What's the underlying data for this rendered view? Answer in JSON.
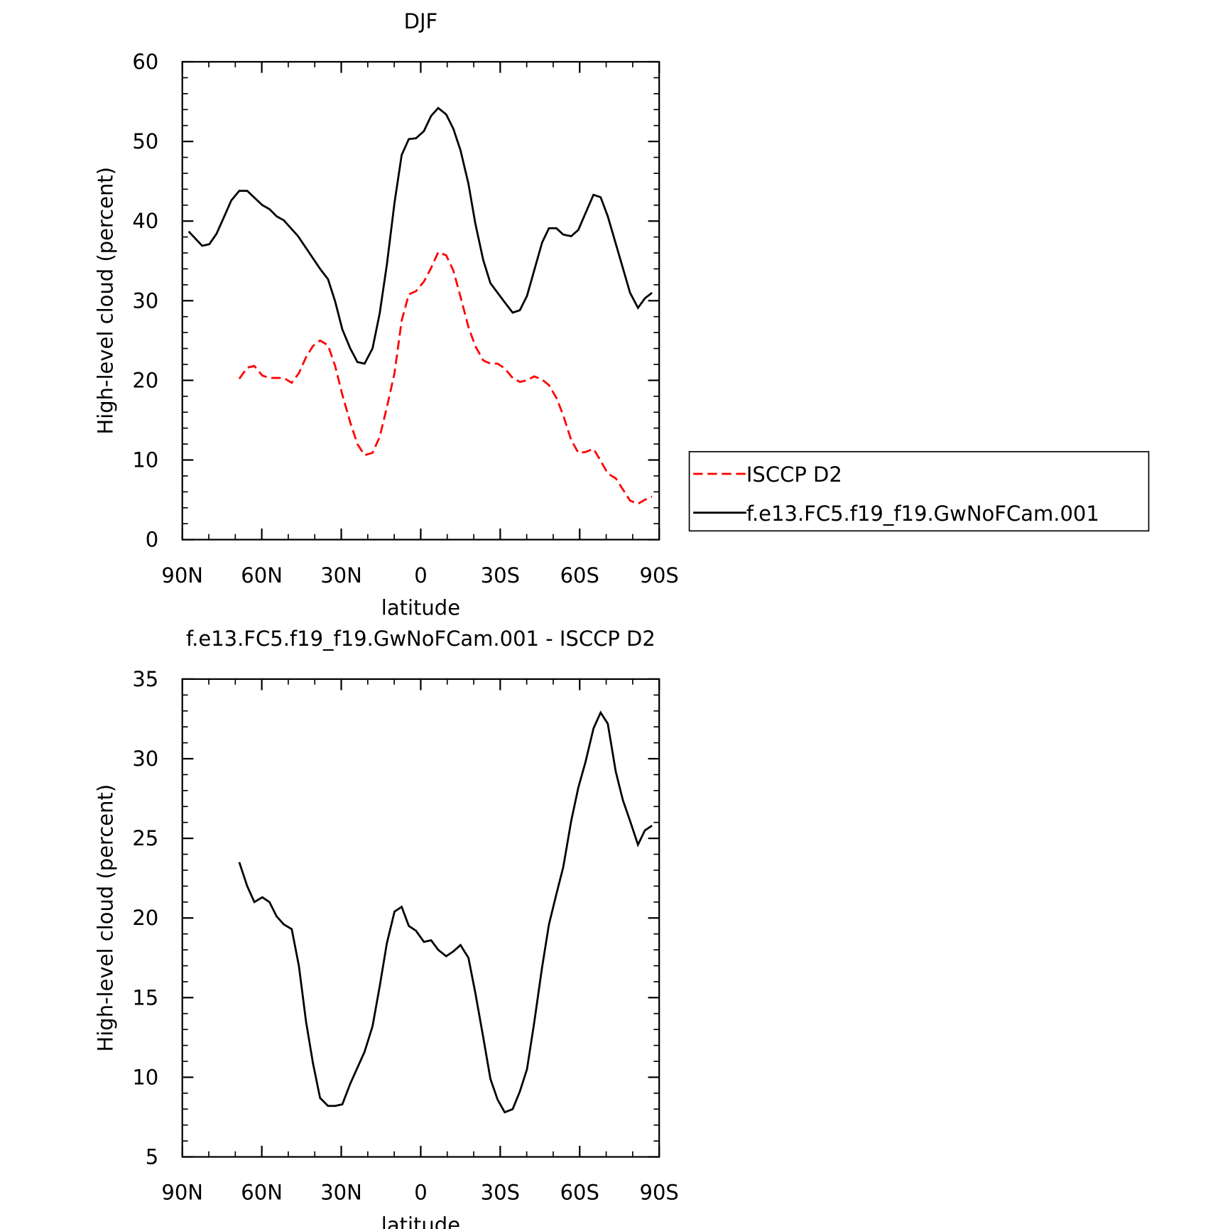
{
  "chart_data": [
    {
      "type": "line",
      "title": "DJF",
      "xlabel": "latitude",
      "ylabel": "High-level cloud (percent)",
      "xlim": [
        90,
        -90
      ],
      "xticks": [
        {
          "value": 90,
          "label": "90N"
        },
        {
          "value": 60,
          "label": "60N"
        },
        {
          "value": 30,
          "label": "30N"
        },
        0,
        {
          "value": -30,
          "label": "30S"
        },
        {
          "value": -60,
          "label": "60S"
        },
        {
          "value": -90,
          "label": "90S"
        }
      ],
      "ylim": [
        0,
        60
      ],
      "yticks": [
        0,
        10,
        20,
        30,
        40,
        50,
        60
      ],
      "legend": "right",
      "series": [
        {
          "name": "ISCCP D2",
          "color": "#ff0000",
          "dashed": true,
          "x": [
            68.5,
            65.5,
            62.8,
            59.8,
            57.1,
            51.7,
            48.7,
            46.0,
            43.3,
            40.7,
            38.0,
            35.0,
            32.3,
            29.6,
            26.6,
            23.9,
            21.2,
            18.2,
            15.5,
            12.8,
            9.9,
            7.2,
            4.5,
            1.8,
            -1.2,
            -3.9,
            -6.6,
            -9.6,
            -12.3,
            -15.0,
            -18.0,
            -20.6,
            -23.6,
            -26.3,
            -29.0,
            -31.7,
            -34.7,
            -37.4,
            -40.1,
            -42.8,
            -45.8,
            -48.4,
            -51.2,
            -53.8,
            -56.8,
            -59.5,
            -62.2,
            -65.2,
            -67.9,
            -70.6,
            -73.6,
            -76.3,
            -79.0,
            -82.0,
            -84.6,
            -87.3
          ],
          "values": [
            20.2,
            21.6,
            21.8,
            20.6,
            20.3,
            20.3,
            19.7,
            20.9,
            22.9,
            24.3,
            25.0,
            24.4,
            21.8,
            18.2,
            14.7,
            12.0,
            10.6,
            10.9,
            12.9,
            16.6,
            20.9,
            27.5,
            30.8,
            31.2,
            32.4,
            34.1,
            36.1,
            35.7,
            33.8,
            30.5,
            26.7,
            24.3,
            22.5,
            22.1,
            22.1,
            21.5,
            20.3,
            19.8,
            20.0,
            20.5,
            20.1,
            19.4,
            17.8,
            15.6,
            12.5,
            10.9,
            11.0,
            11.4,
            9.9,
            8.3,
            7.7,
            6.3,
            4.9,
            4.5,
            5.0,
            5.4
          ]
        },
        {
          "name": "f.e13.FC5.f19_f19.GwNoFCam.001",
          "color": "#000000",
          "dashed": false,
          "x": [
            87.6,
            82.5,
            79.8,
            77.1,
            74.4,
            71.5,
            68.5,
            65.5,
            59.8,
            57.1,
            54.4,
            51.7,
            46.3,
            38.0,
            35.0,
            32.3,
            29.6,
            26.6,
            23.9,
            21.2,
            18.2,
            15.5,
            12.8,
            9.9,
            7.2,
            4.5,
            1.8,
            -1.2,
            -3.9,
            -6.6,
            -9.6,
            -12.3,
            -15.0,
            -18.0,
            -20.6,
            -23.6,
            -26.3,
            -31.7,
            -34.7,
            -37.4,
            -40.1,
            -45.8,
            -48.4,
            -51.2,
            -53.8,
            -56.8,
            -59.5,
            -62.2,
            -65.2,
            -67.9,
            -70.6,
            -76.3,
            -79.0,
            -82.0,
            -84.6,
            -87.3
          ],
          "values": [
            38.7,
            36.9,
            37.1,
            38.4,
            40.4,
            42.6,
            43.8,
            43.8,
            42.0,
            41.5,
            40.6,
            40.1,
            38.1,
            34.0,
            32.7,
            29.9,
            26.4,
            24.0,
            22.3,
            22.1,
            24.0,
            28.4,
            34.5,
            42.3,
            48.3,
            50.3,
            50.4,
            51.3,
            53.2,
            54.2,
            53.4,
            51.6,
            48.9,
            44.7,
            39.7,
            35.1,
            32.2,
            29.8,
            28.5,
            28.8,
            30.6,
            37.3,
            39.1,
            39.1,
            38.3,
            38.1,
            38.9,
            41.0,
            43.3,
            43.0,
            40.6,
            34.1,
            31.0,
            29.1,
            30.3,
            31.0
          ]
        }
      ]
    },
    {
      "type": "line",
      "title": "f.e13.FC5.f19_f19.GwNoFCam.001 - ISCCP D2",
      "xlabel": "latitude",
      "ylabel": "High-level cloud (percent)",
      "xlim": [
        90,
        -90
      ],
      "xticks": [
        {
          "value": 90,
          "label": "90N"
        },
        {
          "value": 60,
          "label": "60N"
        },
        {
          "value": 30,
          "label": "30N"
        },
        0,
        {
          "value": -30,
          "label": "30S"
        },
        {
          "value": -60,
          "label": "60S"
        },
        {
          "value": -90,
          "label": "90S"
        }
      ],
      "ylim": [
        5,
        35
      ],
      "yticks": [
        5,
        10,
        15,
        20,
        25,
        30,
        35
      ],
      "series": [
        {
          "color": "#000000",
          "dashed": false,
          "x": [
            68.5,
            65.5,
            62.8,
            59.8,
            57.1,
            54.4,
            51.7,
            48.7,
            46.0,
            43.3,
            40.7,
            38.0,
            35.0,
            32.3,
            29.6,
            26.6,
            23.9,
            21.2,
            18.2,
            15.5,
            12.8,
            9.9,
            7.2,
            4.5,
            1.8,
            -1.2,
            -3.9,
            -6.6,
            -9.6,
            -12.3,
            -15.0,
            -18.0,
            -20.6,
            -23.6,
            -26.3,
            -29.0,
            -31.7,
            -34.7,
            -37.4,
            -40.1,
            -42.8,
            -45.8,
            -48.4,
            -51.2,
            -53.8,
            -56.8,
            -59.5,
            -62.2,
            -65.2,
            -67.9,
            -70.6,
            -73.6,
            -76.3,
            -79.0,
            -82.0,
            -84.6,
            -87.3
          ],
          "values": [
            23.5,
            22.0,
            21.0,
            21.3,
            21.0,
            20.1,
            19.6,
            19.3,
            17.0,
            13.5,
            10.9,
            8.7,
            8.2,
            8.2,
            8.3,
            9.6,
            10.6,
            11.6,
            13.2,
            15.7,
            18.4,
            20.4,
            20.7,
            19.5,
            19.2,
            18.5,
            18.6,
            18.0,
            17.6,
            17.9,
            18.3,
            17.5,
            15.3,
            12.5,
            9.9,
            8.6,
            7.8,
            8.0,
            9.1,
            10.5,
            13.4,
            16.9,
            19.6,
            21.5,
            23.2,
            26.1,
            28.2,
            29.8,
            31.9,
            32.9,
            32.2,
            29.2,
            27.4,
            26.1,
            24.6,
            25.5,
            25.8
          ]
        }
      ]
    }
  ]
}
